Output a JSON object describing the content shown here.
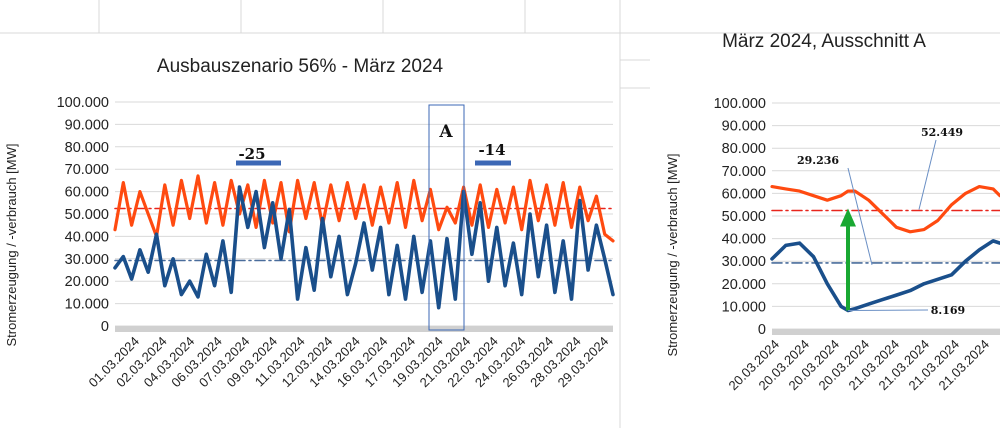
{
  "colors": {
    "generation": "#ff4a10",
    "consumption": "#1a4f8b",
    "avg_generation": "#e8251c",
    "avg_consumption": "#4a6d9c",
    "arrow": "#19a832",
    "bracket": "#3b67b5",
    "grid": "#d9d9d9",
    "axis_band": "#d0d0d0"
  },
  "chart_data": [
    {
      "type": "line",
      "title": "Ausbauszenario 56% - März 2024",
      "ylabel": "Stromerzeugung / -verbrauch [MW]",
      "ylim": [
        0,
        100000
      ],
      "yticks": [
        "0",
        "10.000",
        "20.000",
        "30.000",
        "40.000",
        "50.000",
        "60.000",
        "70.000",
        "80.000",
        "90.000",
        "100.000"
      ],
      "xticks": [
        "01.03.2024",
        "02.03.2024",
        "04.03.2024",
        "06.03.2024",
        "07.03.2024",
        "09.03.2024",
        "11.03.2024",
        "12.03.2024",
        "14.03.2024",
        "16.03.2024",
        "17.03.2024",
        "19.03.2024",
        "21.03.2024",
        "22.03.2024",
        "24.03.2024",
        "26.03.2024",
        "28.03.2024",
        "29.03.2024"
      ],
      "x_day_range": [
        1,
        31
      ],
      "grid": true,
      "series": [
        {
          "key": "generation",
          "x": [
            1,
            1.5,
            2,
            2.5,
            3,
            3.5,
            4,
            4.5,
            5,
            5.5,
            6,
            6.5,
            7,
            7.5,
            8,
            8.5,
            9,
            9.5,
            10,
            10.5,
            11,
            11.5,
            12,
            12.5,
            13,
            13.5,
            14,
            14.5,
            15,
            15.5,
            16,
            16.5,
            17,
            17.5,
            18,
            18.5,
            19,
            19.5,
            20,
            20.5,
            21,
            21.5,
            22,
            22.5,
            23,
            23.5,
            24,
            24.5,
            25,
            25.5,
            26,
            26.5,
            27,
            27.5,
            28,
            28.5,
            29,
            29.5,
            30,
            30.5,
            31
          ],
          "values": [
            43000,
            64000,
            45000,
            60000,
            50000,
            40000,
            63000,
            45000,
            65000,
            48000,
            67000,
            46000,
            64000,
            45000,
            65000,
            50000,
            63000,
            44000,
            65000,
            46000,
            64000,
            42000,
            65000,
            48000,
            64000,
            45000,
            63000,
            47000,
            64000,
            48000,
            63000,
            45000,
            62000,
            46000,
            64000,
            44000,
            65000,
            47000,
            61000,
            43000,
            53000,
            46000,
            62000,
            45000,
            63000,
            44000,
            61000,
            46000,
            62000,
            43000,
            65000,
            47000,
            63000,
            45000,
            64000,
            44000,
            62000,
            47000,
            58000,
            41000,
            38000
          ]
        },
        {
          "key": "consumption",
          "x": [
            1,
            1.5,
            2,
            2.5,
            3,
            3.5,
            4,
            4.5,
            5,
            5.5,
            6,
            6.5,
            7,
            7.5,
            8,
            8.5,
            9,
            9.5,
            10,
            10.5,
            11,
            11.5,
            12,
            12.5,
            13,
            13.5,
            14,
            14.5,
            15,
            15.5,
            16,
            16.5,
            17,
            17.5,
            18,
            18.5,
            19,
            19.5,
            20,
            20.5,
            21,
            21.5,
            22,
            22.5,
            23,
            23.5,
            24,
            24.5,
            25,
            25.5,
            26,
            26.5,
            27,
            27.5,
            28,
            28.5,
            29,
            29.5,
            30,
            30.5,
            31
          ],
          "values": [
            26000,
            31000,
            21000,
            34000,
            24000,
            41000,
            18000,
            30000,
            14000,
            20000,
            13000,
            32000,
            18000,
            38000,
            15000,
            62000,
            44000,
            60000,
            35000,
            55000,
            30000,
            52000,
            12000,
            35000,
            16000,
            48000,
            22000,
            40000,
            14000,
            28000,
            46000,
            25000,
            44000,
            14000,
            36000,
            12000,
            40000,
            15000,
            38000,
            8169,
            39000,
            12000,
            60000,
            32000,
            55000,
            20000,
            44000,
            18000,
            37000,
            14000,
            50000,
            22000,
            45000,
            15000,
            38000,
            12000,
            56000,
            25000,
            45000,
            30000,
            14000
          ]
        },
        {
          "key": "avg_generation",
          "style": "dashdot",
          "x": [
            1,
            31
          ],
          "values": [
            52449,
            52449
          ]
        },
        {
          "key": "avg_consumption",
          "style": "dashdot",
          "x": [
            1,
            31
          ],
          "values": [
            29236,
            29236
          ]
        }
      ],
      "annotations": {
        "label_a": "A",
        "label_minus25": "-25",
        "label_minus14": "-14"
      }
    },
    {
      "type": "line",
      "title": "März 2024, Ausschnitt A",
      "ylabel": "Stromerzeugung / -verbrauch [MW]",
      "ylim": [
        0,
        100000
      ],
      "yticks": [
        "0",
        "10.000",
        "20.000",
        "30.000",
        "40.000",
        "50.000",
        "60.000",
        "70.000",
        "80.000",
        "90.000",
        "100.000"
      ],
      "xticks": [
        "20.03.2024",
        "20.03.2024",
        "20.03.2024",
        "20.03.2024",
        "21.03.2024",
        "21.03.2024",
        "21.03.2024",
        "21.03.2024"
      ],
      "x_hour_range": [
        0,
        33
      ],
      "grid": true,
      "series": [
        {
          "key": "generation",
          "x": [
            0,
            2,
            4,
            6,
            8,
            10,
            11,
            12,
            14,
            16,
            17,
            18,
            20,
            22,
            24,
            26,
            28,
            30,
            32,
            33
          ],
          "values": [
            63000,
            62000,
            61000,
            59000,
            57000,
            59000,
            61000,
            61000,
            57000,
            51000,
            48000,
            45000,
            43000,
            44000,
            48000,
            55000,
            60000,
            63000,
            62000,
            59000
          ]
        },
        {
          "key": "consumption",
          "x": [
            0,
            2,
            4,
            6,
            8,
            10,
            11,
            12,
            14,
            16,
            18,
            20,
            22,
            24,
            26,
            28,
            30,
            32,
            33
          ],
          "values": [
            31000,
            37000,
            38000,
            32000,
            20000,
            10000,
            8169,
            9000,
            11000,
            13000,
            15000,
            17000,
            20000,
            22000,
            24000,
            30000,
            35000,
            39000,
            38000
          ]
        },
        {
          "key": "avg_generation",
          "style": "dashdot",
          "x": [
            0,
            33
          ],
          "values": [
            52449,
            52449
          ]
        },
        {
          "key": "avg_consumption",
          "style": "dashdot",
          "x": [
            0,
            33
          ],
          "values": [
            29236,
            29236
          ]
        }
      ],
      "annotations": {
        "label_avg_generation": "52.449",
        "label_avg_consumption": "29.236",
        "label_min_consumption": "8.169"
      }
    }
  ]
}
